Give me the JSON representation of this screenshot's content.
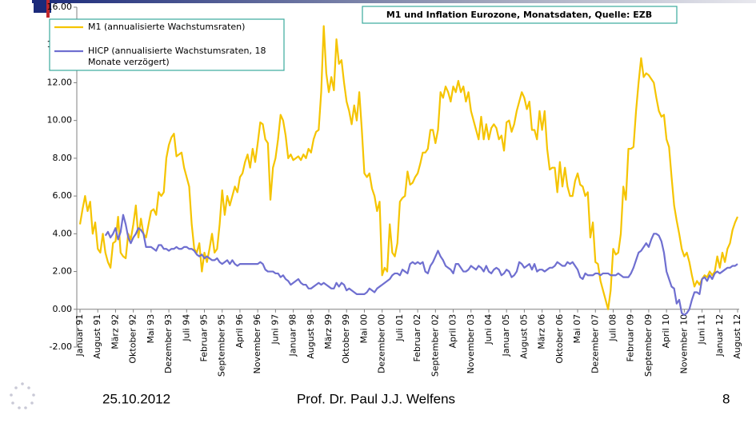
{
  "chart_data": {
    "type": "line",
    "title": "M1 und Inflation Eurozone, Monatsdaten, Quelle: EZB",
    "categories": [
      "Januar 91",
      null,
      null,
      null,
      null,
      null,
      null,
      "August 91",
      null,
      null,
      null,
      null,
      null,
      null,
      "März 92",
      null,
      null,
      null,
      null,
      null,
      null,
      "Oktober 92",
      null,
      null,
      null,
      null,
      null,
      null,
      "Mai 93",
      null,
      null,
      null,
      null,
      null,
      null,
      "Dezember 93",
      null,
      null,
      null,
      null,
      null,
      null,
      "Juli 94",
      null,
      null,
      null,
      null,
      null,
      null,
      "Februar 95",
      null,
      null,
      null,
      null,
      null,
      null,
      "September 95",
      null,
      null,
      null,
      null,
      null,
      null,
      "April 96",
      null,
      null,
      null,
      null,
      null,
      null,
      "November 96",
      null,
      null,
      null,
      null,
      null,
      null,
      "Juni 97",
      null,
      null,
      null,
      null,
      null,
      null,
      "Januar 98",
      null,
      null,
      null,
      null,
      null,
      null,
      "August 98",
      null,
      null,
      null,
      null,
      null,
      null,
      "März 99",
      null,
      null,
      null,
      null,
      null,
      null,
      "Oktober 99",
      null,
      null,
      null,
      null,
      null,
      null,
      "Mai 00",
      null,
      null,
      null,
      null,
      null,
      null,
      "Dezember 00",
      null,
      null,
      null,
      null,
      null,
      null,
      "Juli 01",
      null,
      null,
      null,
      null,
      null,
      null,
      "Februar 02",
      null,
      null,
      null,
      null,
      null,
      null,
      "September 02",
      null,
      null,
      null,
      null,
      null,
      null,
      "April 03",
      null,
      null,
      null,
      null,
      null,
      null,
      "November 03",
      null,
      null,
      null,
      null,
      null,
      null,
      "Juni 04",
      null,
      null,
      null,
      null,
      null,
      null,
      "Januar 05",
      null,
      null,
      null,
      null,
      null,
      null,
      "August 05",
      null,
      null,
      null,
      null,
      null,
      null,
      "März 06",
      null,
      null,
      null,
      null,
      null,
      null,
      "Oktober 06",
      null,
      null,
      null,
      null,
      null,
      null,
      "Mai 07",
      null,
      null,
      null,
      null,
      null,
      null,
      "Dezember 07",
      null,
      null,
      null,
      null,
      null,
      null,
      "Juli 08",
      null,
      null,
      null,
      null,
      null,
      null,
      "Februar 09",
      null,
      null,
      null,
      null,
      null,
      null,
      "September 09",
      null,
      null,
      null,
      null,
      null,
      null,
      "April 10",
      null,
      null,
      null,
      null,
      null,
      null,
      "November 10",
      null,
      null,
      null,
      null,
      null,
      null,
      "Juni 11",
      null,
      null,
      null,
      null,
      null,
      null,
      "Januar 12",
      null,
      null,
      null,
      null,
      null,
      null,
      "August 12"
    ],
    "series": [
      {
        "name": "M1 (annualisierte Wachstumsraten)",
        "color": "#f5c400",
        "values": [
          4.5,
          5.3,
          6.0,
          5.2,
          5.7,
          4.0,
          4.6,
          3.2,
          3.0,
          4.0,
          3.0,
          2.5,
          2.2,
          3.5,
          3.6,
          4.9,
          3.0,
          2.8,
          2.7,
          4.0,
          3.7,
          4.5,
          5.5,
          3.8,
          4.8,
          4.0,
          3.8,
          4.5,
          5.2,
          5.3,
          5.0,
          6.2,
          6.0,
          6.2,
          8.0,
          8.7,
          9.1,
          9.3,
          8.1,
          8.2,
          8.3,
          7.5,
          7.0,
          6.5,
          4.5,
          3.2,
          3.0,
          3.5,
          2.0,
          3.0,
          2.5,
          3.2,
          4.0,
          3.0,
          3.2,
          4.5,
          6.3,
          5.0,
          6.0,
          5.5,
          6.0,
          6.5,
          6.2,
          7.0,
          7.2,
          7.8,
          8.2,
          7.5,
          8.5,
          7.8,
          8.8,
          9.9,
          9.8,
          9.0,
          8.8,
          5.8,
          7.5,
          8.0,
          9.0,
          10.3,
          10.0,
          9.2,
          8.0,
          8.2,
          7.9,
          8.0,
          8.1,
          7.9,
          8.2,
          8.0,
          8.5,
          8.3,
          9.0,
          9.4,
          9.5,
          11.5,
          15.0,
          12.5,
          11.5,
          12.3,
          11.6,
          14.3,
          13.0,
          13.2,
          12.0,
          11.0,
          10.5,
          9.8,
          10.8,
          10.0,
          11.5,
          9.5,
          7.2,
          7.0,
          7.2,
          6.4,
          6.0,
          5.2,
          5.7,
          1.8,
          2.2,
          2.0,
          4.5,
          3.0,
          2.8,
          3.5,
          5.7,
          5.9,
          6.0,
          7.3,
          6.6,
          6.7,
          7.0,
          7.2,
          7.7,
          8.3,
          8.3,
          8.5,
          9.5,
          9.5,
          8.8,
          9.5,
          11.5,
          11.2,
          11.8,
          11.5,
          11.0,
          11.8,
          11.5,
          12.1,
          11.5,
          11.8,
          11.0,
          11.5,
          10.5,
          10.0,
          9.5,
          9.0,
          10.2,
          9.0,
          9.8,
          9.0,
          9.6,
          9.8,
          9.6,
          9.0,
          9.2,
          8.4,
          9.9,
          10.0,
          9.4,
          9.8,
          10.5,
          11.0,
          11.5,
          11.2,
          10.6,
          11.0,
          9.5,
          9.5,
          9.0,
          10.5,
          9.5,
          10.5,
          8.5,
          7.4,
          7.5,
          7.5,
          6.2,
          7.8,
          6.5,
          7.5,
          6.5,
          6.0,
          6.0,
          6.8,
          7.2,
          6.6,
          6.5,
          6.0,
          6.2,
          3.8,
          4.6,
          2.5,
          2.4,
          1.5,
          1.0,
          0.5,
          0.0,
          1.0,
          3.2,
          2.9,
          3.0,
          4.0,
          6.5,
          5.8,
          8.5,
          8.5,
          8.6,
          10.5,
          12.0,
          13.3,
          12.3,
          12.5,
          12.4,
          12.2,
          12.0,
          11.2,
          10.5,
          10.2,
          10.3,
          9.0,
          8.6,
          7.0,
          5.5,
          4.7,
          4.0,
          3.2,
          2.8,
          3.0,
          2.5,
          1.8,
          1.2,
          1.5,
          1.3,
          1.6,
          1.8,
          1.7,
          2.0,
          1.8,
          2.0,
          2.8,
          2.2,
          3.0,
          2.5,
          3.2,
          3.5,
          4.2,
          4.6,
          4.9
        ]
      },
      {
        "name": "HICP (annualisierte Wachstumsraten, 18 Monate verzögert)",
        "color": "#6f6fd0",
        "values": [
          null,
          null,
          null,
          null,
          null,
          null,
          null,
          null,
          null,
          null,
          3.9,
          4.1,
          3.8,
          4.0,
          4.3,
          3.7,
          4.1,
          5.0,
          4.5,
          3.8,
          3.5,
          3.8,
          4.0,
          4.3,
          4.2,
          4.0,
          3.3,
          3.3,
          3.3,
          3.2,
          3.1,
          3.4,
          3.4,
          3.2,
          3.2,
          3.1,
          3.2,
          3.2,
          3.3,
          3.2,
          3.2,
          3.3,
          3.3,
          3.2,
          3.2,
          3.1,
          2.9,
          2.8,
          2.9,
          2.7,
          2.8,
          2.7,
          2.6,
          2.6,
          2.7,
          2.5,
          2.4,
          2.5,
          2.6,
          2.4,
          2.6,
          2.4,
          2.3,
          2.4,
          2.4,
          2.4,
          2.4,
          2.4,
          2.4,
          2.4,
          2.4,
          2.5,
          2.4,
          2.1,
          2.0,
          2.0,
          2.0,
          1.9,
          1.9,
          1.7,
          1.8,
          1.6,
          1.5,
          1.3,
          1.4,
          1.5,
          1.6,
          1.4,
          1.3,
          1.3,
          1.1,
          1.1,
          1.2,
          1.3,
          1.4,
          1.3,
          1.4,
          1.3,
          1.2,
          1.1,
          1.1,
          1.4,
          1.2,
          1.4,
          1.3,
          1.0,
          1.1,
          1.0,
          0.9,
          0.8,
          0.8,
          0.8,
          0.8,
          0.9,
          1.1,
          1.0,
          0.9,
          1.1,
          1.2,
          1.3,
          1.4,
          1.5,
          1.6,
          1.8,
          1.9,
          1.9,
          1.8,
          2.1,
          2.0,
          1.9,
          2.4,
          2.5,
          2.4,
          2.5,
          2.4,
          2.5,
          2.0,
          1.9,
          2.3,
          2.5,
          2.8,
          3.1,
          2.8,
          2.6,
          2.3,
          2.2,
          2.1,
          1.9,
          2.4,
          2.4,
          2.2,
          2.0,
          2.0,
          2.1,
          2.3,
          2.2,
          2.1,
          2.3,
          2.2,
          2.0,
          2.3,
          2.0,
          1.9,
          2.1,
          2.2,
          2.1,
          1.8,
          1.9,
          2.1,
          2.0,
          1.7,
          1.8,
          2.0,
          2.5,
          2.4,
          2.2,
          2.3,
          2.4,
          2.1,
          2.4,
          2.0,
          2.1,
          2.1,
          2.0,
          2.1,
          2.2,
          2.2,
          2.3,
          2.5,
          2.4,
          2.3,
          2.3,
          2.5,
          2.4,
          2.5,
          2.3,
          2.1,
          1.7,
          1.6,
          1.9,
          1.8,
          1.8,
          1.8,
          1.9,
          1.9,
          1.8,
          1.9,
          1.9,
          1.9,
          1.8,
          1.8,
          1.8,
          1.9,
          1.8,
          1.7,
          1.7,
          1.7,
          1.9,
          2.2,
          2.6,
          3.0,
          3.1,
          3.3,
          3.5,
          3.3,
          3.7,
          4.0,
          4.0,
          3.9,
          3.6,
          3.0,
          2.0,
          1.6,
          1.2,
          1.1,
          0.3,
          0.5,
          -0.2,
          -0.3,
          -0.2,
          0.0,
          0.5,
          0.9,
          0.9,
          0.8,
          1.6,
          1.7,
          1.5,
          1.8,
          1.6,
          1.9,
          2.0,
          1.9,
          2.0,
          2.1,
          2.2,
          2.2,
          2.3,
          2.3,
          2.4
        ]
      }
    ],
    "ylim": [
      -2,
      16
    ],
    "yticks": [
      {
        "value": -2,
        "label": "-2.00"
      },
      {
        "value": 0,
        "label": "0.00"
      },
      {
        "value": 2,
        "label": "2.00"
      },
      {
        "value": 4,
        "label": "4.00"
      },
      {
        "value": 6,
        "label": "6.00"
      },
      {
        "value": 8,
        "label": "8.00"
      },
      {
        "value": 10,
        "label": "10.00"
      },
      {
        "value": 12,
        "label": "12.00"
      },
      {
        "value": 14,
        "label": "14.00"
      },
      {
        "value": 16,
        "label": "16.00"
      }
    ],
    "legend": "upper left",
    "grid": false
  },
  "footer": {
    "date": "25.10.2012",
    "author": "Prof. Dr. Paul J.J. Welfens",
    "page": "8"
  }
}
